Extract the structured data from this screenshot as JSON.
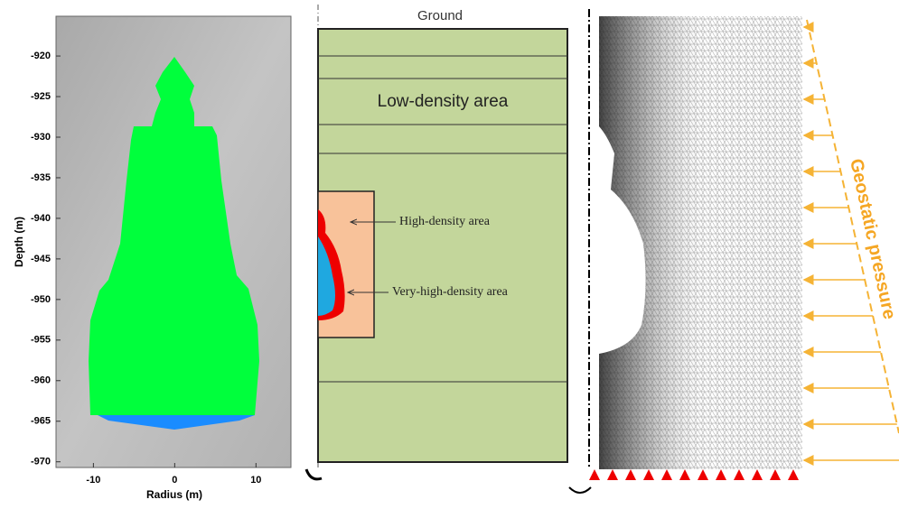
{
  "left_panel": {
    "ylabel": "Depth (m)",
    "xlabel": "Radius (m)",
    "yticks": [
      -920,
      -925,
      -930,
      -935,
      -940,
      -945,
      -950,
      -955,
      -960,
      -965,
      -970
    ],
    "xticks": [
      -10,
      0,
      10
    ],
    "ylim": [
      -970.7,
      -915.1
    ],
    "xlim": [
      -14.6,
      14.3
    ]
  },
  "middle_panel": {
    "ground": "Ground",
    "low": "Low-density area",
    "high": "High-density area",
    "very_high": "Very-high-density area"
  },
  "right_panel": {
    "pressure": "Geostatic pressure"
  }
}
